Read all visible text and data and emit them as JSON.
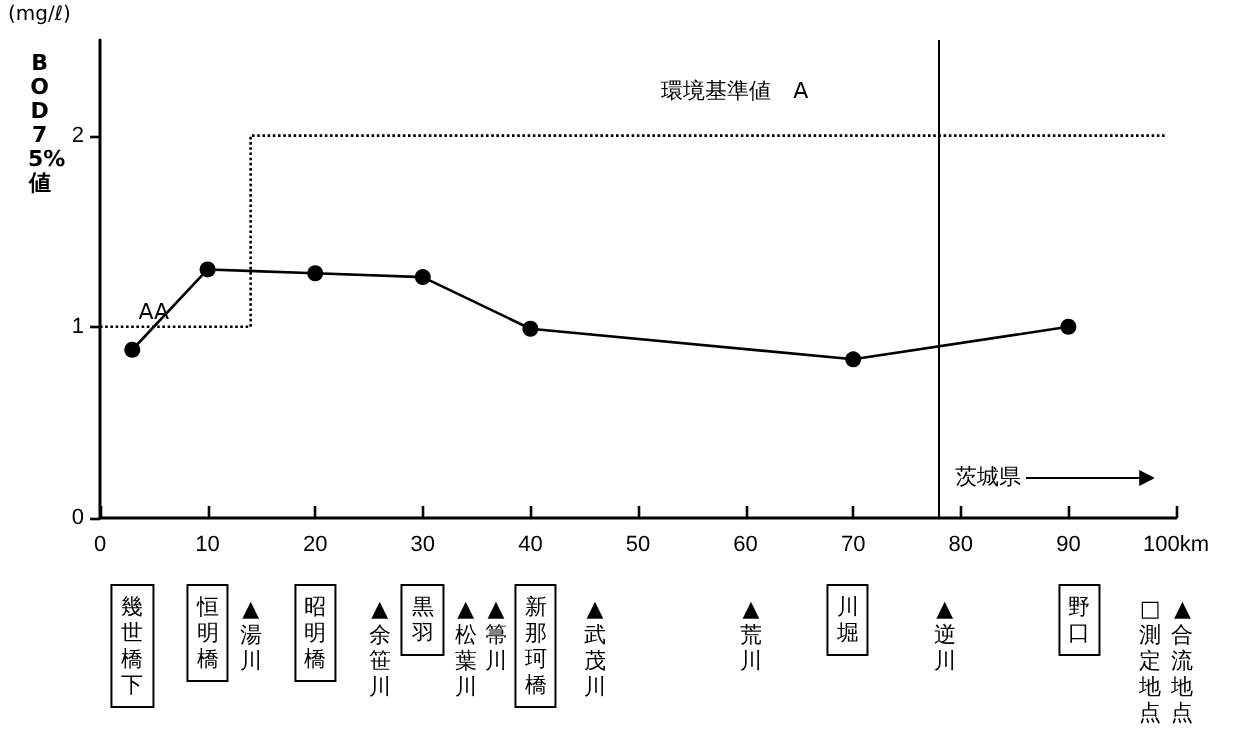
{
  "chart_data": {
    "type": "line",
    "ylabel": "BOD75%値",
    "xlim": [
      0,
      100
    ],
    "xticks": [
      0,
      10,
      20,
      30,
      40,
      50,
      60,
      70,
      80,
      90,
      {
        "value": 100,
        "label": "100km"
      }
    ],
    "ylim": [
      0,
      2.5
    ],
    "yticks": [
      0,
      1,
      2
    ],
    "series": [
      {
        "color": "#000000",
        "marker": "circle",
        "line_style": "solid",
        "x": [
          3,
          10,
          20,
          30,
          40,
          70,
          90
        ],
        "values": [
          0.88,
          1.3,
          1.28,
          1.26,
          0.99,
          0.83,
          1.0
        ]
      },
      {
        "color": "#000000",
        "marker": "none",
        "line_style": "dotted",
        "x": [
          0,
          14,
          14,
          99
        ],
        "values": [
          1,
          1,
          2,
          2
        ]
      }
    ],
    "ref_lines": [
      {
        "axis": "x",
        "value": 78,
        "label": "茨城県",
        "color": "#000000"
      }
    ],
    "annotations": [
      "(mg/ℓ)",
      {
        "text": "AA",
        "x": 5,
        "y": 1.07
      },
      "環境基準値　A",
      "幾世橋下",
      "恒明橋",
      "▲湯川",
      "昭明橋",
      "▲余笹川",
      "黒羽",
      "▲松葉川",
      "▲箒川",
      "新那珂橋",
      "▲武茂川",
      "▲荒川",
      "川堀",
      "▲逆川",
      "野口",
      "□測定地点",
      "▲合流地点"
    ],
    "grid": false
  }
}
